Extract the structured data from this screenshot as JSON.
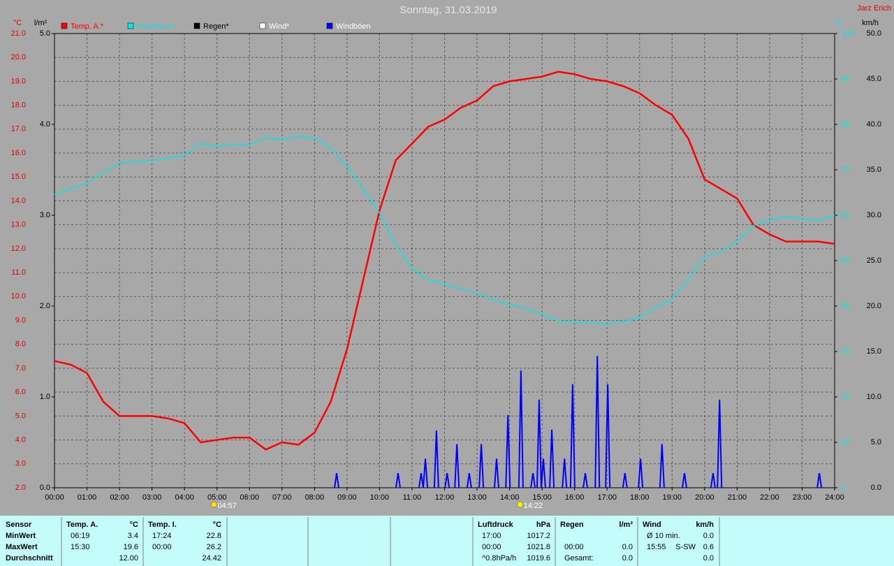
{
  "chart_data": {
    "type": "line",
    "title": "Sonntag, 31.03.2019",
    "author": "Jarz Erich",
    "ylabel": "°C",
    "y3label": "l/m²",
    "y2label": "%",
    "y4label": "km/h",
    "grid": true,
    "xlim": [
      0,
      24
    ],
    "xticks": [
      {
        "value": 0,
        "label": "00:00"
      },
      {
        "value": 1,
        "label": "01:00"
      },
      {
        "value": 2,
        "label": "02:00"
      },
      {
        "value": 3,
        "label": "03:00"
      },
      {
        "value": 4,
        "label": "04:00"
      },
      {
        "value": 5,
        "label": "05:00"
      },
      {
        "value": 6,
        "label": "06:00"
      },
      {
        "value": 7,
        "label": "07:00"
      },
      {
        "value": 8,
        "label": "08:00"
      },
      {
        "value": 9,
        "label": "09:00"
      },
      {
        "value": 10,
        "label": "10:00"
      },
      {
        "value": 11,
        "label": "11:00"
      },
      {
        "value": 12,
        "label": "12:00"
      },
      {
        "value": 13,
        "label": "13:00"
      },
      {
        "value": 14,
        "label": "14:00"
      },
      {
        "value": 15,
        "label": "15:00"
      },
      {
        "value": 16,
        "label": "16:00"
      },
      {
        "value": 17,
        "label": "17:00"
      },
      {
        "value": 18,
        "label": "18:00"
      },
      {
        "value": 19,
        "label": "19:00"
      },
      {
        "value": 20,
        "label": "20:00"
      },
      {
        "value": 21,
        "label": "21:00"
      },
      {
        "value": 22,
        "label": "22:00"
      },
      {
        "value": 23,
        "label": "23:00"
      },
      {
        "value": 24,
        "label": "24:00"
      }
    ],
    "ylim": [
      2,
      21
    ],
    "yticks": [
      {
        "value": 2,
        "label": "2.0"
      },
      {
        "value": 3,
        "label": "3.0"
      },
      {
        "value": 4,
        "label": "4.0"
      },
      {
        "value": 5,
        "label": "5.0"
      },
      {
        "value": 6,
        "label": "6.0"
      },
      {
        "value": 7,
        "label": "7.0"
      },
      {
        "value": 8,
        "label": "8.0"
      },
      {
        "value": 9,
        "label": "9.0"
      },
      {
        "value": 10,
        "label": "10.0"
      },
      {
        "value": 11,
        "label": "11.0"
      },
      {
        "value": 12,
        "label": "12.0"
      },
      {
        "value": 13,
        "label": "13.0"
      },
      {
        "value": 14,
        "label": "14.0"
      },
      {
        "value": 15,
        "label": "15.0"
      },
      {
        "value": 16,
        "label": "16.0"
      },
      {
        "value": 17,
        "label": "17.0"
      },
      {
        "value": 18,
        "label": "18.0"
      },
      {
        "value": 19,
        "label": "19.0"
      },
      {
        "value": 20,
        "label": "20.0"
      },
      {
        "value": 21,
        "label": "21.0"
      }
    ],
    "y3lim": [
      0,
      5
    ],
    "y3ticks": [
      {
        "value": 0,
        "label": "0.0"
      },
      {
        "value": 1,
        "label": "1.0"
      },
      {
        "value": 2,
        "label": "2.0"
      },
      {
        "value": 3,
        "label": "3.0"
      },
      {
        "value": 4,
        "label": "4.0"
      },
      {
        "value": 5,
        "label": "5.0"
      }
    ],
    "y2lim": [
      0,
      100
    ],
    "y2ticks": [
      0,
      10,
      20,
      30,
      40,
      50,
      60,
      70,
      80,
      90,
      100
    ],
    "y4lim": [
      0,
      50
    ],
    "y4ticks": [
      {
        "value": 0,
        "label": "0.0"
      },
      {
        "value": 5,
        "label": "5.0"
      },
      {
        "value": 10,
        "label": "10.0"
      },
      {
        "value": 15,
        "label": "15.0"
      },
      {
        "value": 20,
        "label": "20.0"
      },
      {
        "value": 25,
        "label": "25.0"
      },
      {
        "value": 30,
        "label": "30.0"
      },
      {
        "value": 35,
        "label": "35.0"
      },
      {
        "value": 40,
        "label": "40.0"
      },
      {
        "value": 45,
        "label": "45.0"
      },
      {
        "value": 50,
        "label": "50.0"
      }
    ],
    "series": [
      {
        "name": "Temp. A.*",
        "color": "#ff0000",
        "axis": "y",
        "x": [
          0,
          0.5,
          1,
          1.5,
          2,
          2.5,
          3,
          3.5,
          4,
          4.5,
          5,
          5.5,
          6,
          6.5,
          7,
          7.5,
          8,
          8.5,
          9,
          9.5,
          10,
          10.5,
          11,
          11.5,
          12,
          12.5,
          13,
          13.5,
          14,
          14.5,
          15,
          15.5,
          16,
          16.5,
          17,
          17.5,
          18,
          18.5,
          19,
          19.5,
          20,
          20.5,
          21,
          21.5,
          22,
          22.5,
          23,
          23.5,
          24
        ],
        "values": [
          7.3,
          7.15,
          6.8,
          5.6,
          5.0,
          5.0,
          5.0,
          4.9,
          4.7,
          3.9,
          4.0,
          4.1,
          4.1,
          3.6,
          3.9,
          3.8,
          4.3,
          5.6,
          7.8,
          10.7,
          13.6,
          15.7,
          16.4,
          17.1,
          17.4,
          17.9,
          18.2,
          18.8,
          19.0,
          19.1,
          19.2,
          19.4,
          19.3,
          19.1,
          19.0,
          18.8,
          18.5,
          18.0,
          17.6,
          16.6,
          14.9,
          14.5,
          14.1,
          13.0,
          12.6,
          12.3,
          12.3,
          12.3,
          12.2
        ]
      },
      {
        "name": "Feuchte A.*",
        "color": "#00e8e8",
        "axis": "y2",
        "x": [
          0,
          0.5,
          1,
          1.5,
          2,
          2.5,
          3,
          3.5,
          4,
          4.5,
          5,
          5.5,
          6,
          6.5,
          7,
          7.5,
          8,
          8.5,
          9,
          9.5,
          10,
          10.5,
          11,
          11.5,
          12,
          12.5,
          13,
          13.5,
          14,
          14.5,
          15,
          15.5,
          16,
          16.5,
          17,
          17.5,
          18,
          18.5,
          19,
          19.5,
          20,
          20.5,
          21,
          21.5,
          22,
          22.5,
          23,
          23.5,
          24
        ],
        "values": [
          64.6,
          65.8,
          67.1,
          69.4,
          71.5,
          71.7,
          72,
          72.6,
          73.2,
          75.8,
          75.1,
          75.5,
          75.5,
          77.1,
          76.6,
          77.4,
          76.9,
          74.8,
          70.8,
          65.8,
          60.5,
          53.5,
          48.2,
          45.8,
          44.8,
          43.8,
          42.8,
          41.5,
          40.3,
          39.5,
          38.2,
          36.8,
          36.3,
          36.5,
          36.0,
          36.6,
          37.4,
          39.7,
          41.5,
          45.8,
          50.8,
          52,
          54.3,
          57.7,
          58.9,
          59.7,
          59.2,
          58.9,
          60
        ]
      },
      {
        "name": "Regen*",
        "color": "#000000",
        "axis": "y3"
      },
      {
        "name": "Wind*",
        "color": "#ffffff",
        "axis": "y4"
      },
      {
        "name": "Windböen",
        "color": "#0000ff",
        "axis": "y4",
        "style": "spike",
        "x": [
          8.68,
          10.57,
          11.28,
          11.41,
          11.75,
          12.08,
          12.38,
          12.76,
          13.13,
          13.6,
          13.95,
          14.35,
          14.72,
          14.91,
          15.04,
          15.3,
          15.69,
          15.94,
          16.33,
          16.7,
          17.02,
          17.55,
          18.03,
          18.69,
          19.38,
          20.26,
          20.46,
          23.53
        ],
        "values": [
          1.6,
          1.6,
          1.6,
          3.2,
          6.3,
          1.6,
          4.8,
          1.6,
          4.8,
          3.2,
          8.0,
          12.9,
          1.6,
          9.7,
          3.2,
          6.4,
          3.2,
          11.4,
          1.6,
          14.5,
          11.4,
          1.6,
          3.2,
          4.8,
          1.6,
          1.6,
          9.7,
          1.6
        ]
      }
    ],
    "annotations": [
      {
        "label": "04:57",
        "icon": "sunrise"
      },
      {
        "label": "14:22",
        "icon": "sunset"
      }
    ]
  },
  "table": {
    "sensor": {
      "header": "Sensor",
      "rows": [
        "MinWert",
        "MaxWert",
        "Durchschnitt"
      ]
    },
    "blocks": [
      {
        "header": [
          "Temp. A.",
          "°C"
        ],
        "rows": [
          [
            "06:19",
            "3.4"
          ],
          [
            "15:30",
            "19.6"
          ],
          [
            null,
            "12.00"
          ]
        ]
      },
      {
        "header": [
          "Temp. I.",
          "°C"
        ],
        "rows": [
          [
            "17:24",
            "22.8"
          ],
          [
            "00:00",
            "26.2"
          ],
          [
            null,
            "24.42"
          ]
        ]
      },
      {
        "header": [
          "Luftdruck",
          "hPa"
        ],
        "rows": [
          [
            "17:00",
            "1017.2"
          ],
          [
            "00:00",
            "1021.8"
          ],
          [
            "^0.8hPa/h",
            "1019.6"
          ]
        ]
      },
      {
        "header": [
          "Regen",
          "l/m²"
        ],
        "rows": [
          null,
          [
            "00:00",
            "0.0"
          ],
          [
            "Gesamt:",
            "0.0"
          ]
        ]
      },
      {
        "header": [
          "Wind",
          "km/h"
        ],
        "rows": [
          [
            "Ø 10 min.",
            "0.0"
          ],
          [
            "15:55",
            "S-SW",
            "0.6"
          ],
          [
            null,
            "0.0"
          ]
        ]
      }
    ]
  }
}
